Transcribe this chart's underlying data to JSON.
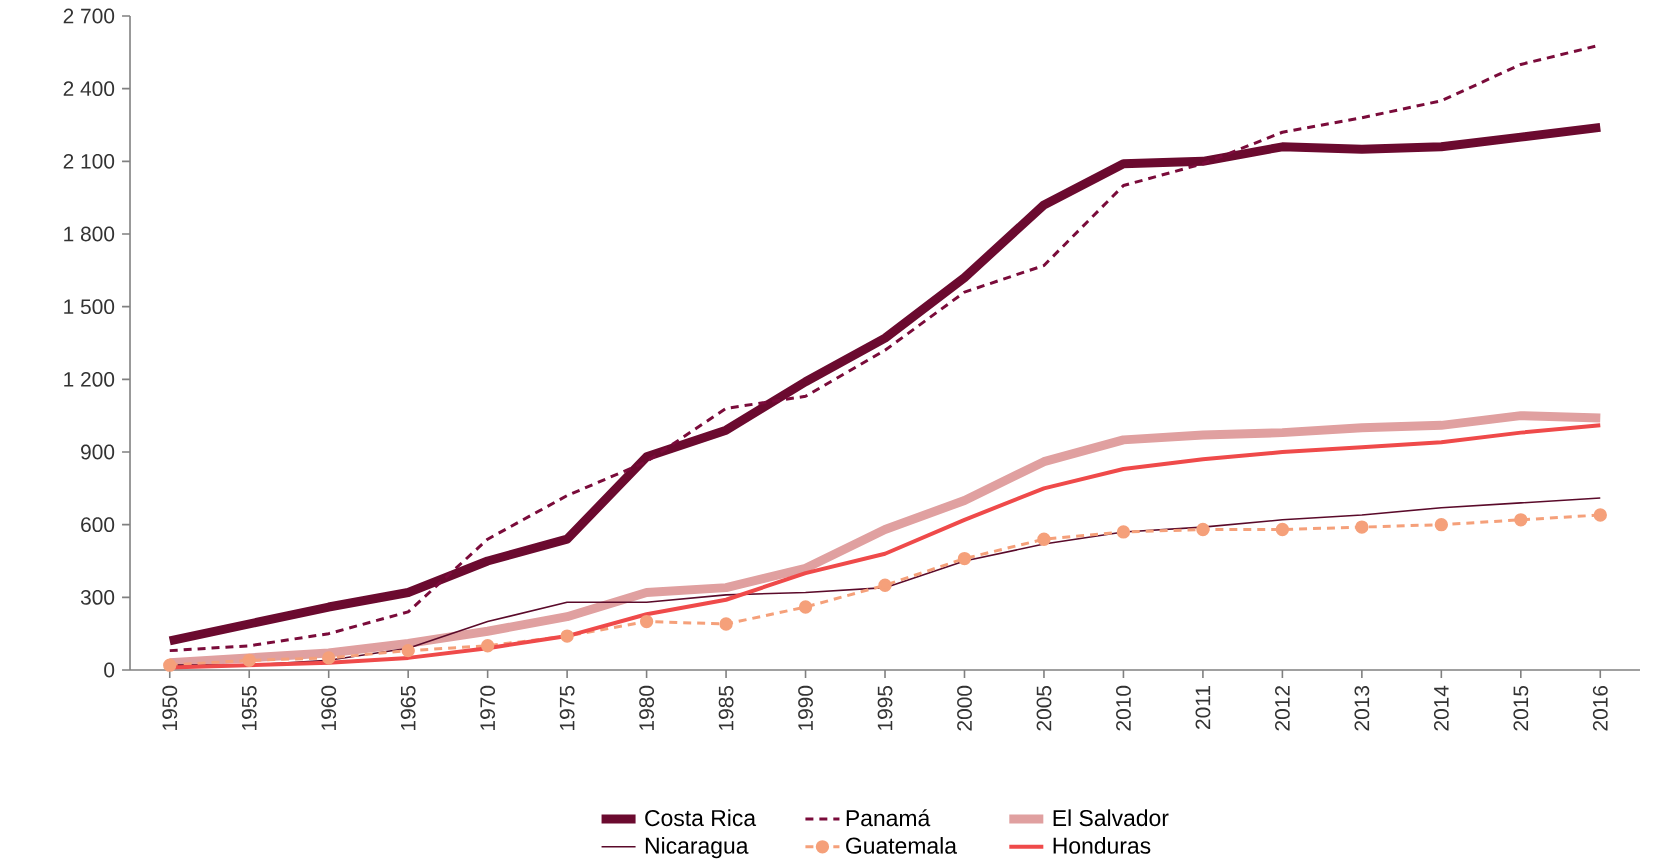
{
  "chart_data": {
    "type": "line",
    "categories": [
      "1950",
      "1955",
      "1960",
      "1965",
      "1970",
      "1975",
      "1980",
      "1985",
      "1990",
      "1995",
      "2000",
      "2005",
      "2010",
      "2011",
      "2012",
      "2013",
      "2014",
      "2015",
      "2016"
    ],
    "ylim": [
      0,
      2700
    ],
    "yticks": [
      0,
      300,
      600,
      900,
      {
        "value": 1200,
        "label": "1 200"
      },
      {
        "value": 1500,
        "label": "1 500"
      },
      {
        "value": 1800,
        "label": "1 800"
      },
      {
        "value": 2100,
        "label": "2 100"
      },
      {
        "value": 2400,
        "label": "2 400"
      },
      {
        "value": 2700,
        "label": "2 700"
      }
    ],
    "grid": false,
    "legend": "bottom",
    "series": [
      {
        "name": "Costa Rica",
        "color": "#6b0a2f",
        "line_style": "solid",
        "values": [
          120,
          190,
          260,
          320,
          450,
          540,
          880,
          990,
          1190,
          1370,
          1620,
          1920,
          2090,
          2100,
          2160,
          2150,
          2160,
          2200,
          2240
        ]
      },
      {
        "name": "Panamá",
        "color": "#7a0b3a",
        "line_style": "dashed",
        "values": [
          80,
          100,
          150,
          240,
          540,
          720,
          860,
          1080,
          1130,
          1320,
          1560,
          1670,
          2000,
          2090,
          2220,
          2280,
          2350,
          2500,
          2580
        ]
      },
      {
        "name": "El Salvador",
        "color": "#e0a0a0",
        "line_style": "solid",
        "values": [
          30,
          50,
          70,
          110,
          160,
          220,
          320,
          340,
          420,
          580,
          700,
          860,
          950,
          970,
          980,
          1000,
          1010,
          1050,
          1040
        ]
      },
      {
        "name": "Nicaragua",
        "color": "#5a0a2a",
        "line_style": "solid",
        "values": [
          20,
          20,
          40,
          90,
          200,
          280,
          280,
          310,
          320,
          340,
          450,
          520,
          570,
          590,
          620,
          640,
          670,
          690,
          710
        ]
      },
      {
        "name": "Guatemala",
        "color": "#f5a07a",
        "line_style": "dashed",
        "marker": "circle",
        "values": [
          20,
          40,
          50,
          80,
          100,
          140,
          200,
          190,
          260,
          350,
          460,
          540,
          570,
          580,
          580,
          590,
          600,
          620,
          640
        ]
      },
      {
        "name": "Honduras",
        "color": "#ef4a4a",
        "line_style": "solid",
        "values": [
          10,
          20,
          30,
          50,
          90,
          140,
          230,
          290,
          400,
          480,
          620,
          750,
          830,
          870,
          900,
          920,
          940,
          980,
          1010
        ]
      }
    ]
  }
}
